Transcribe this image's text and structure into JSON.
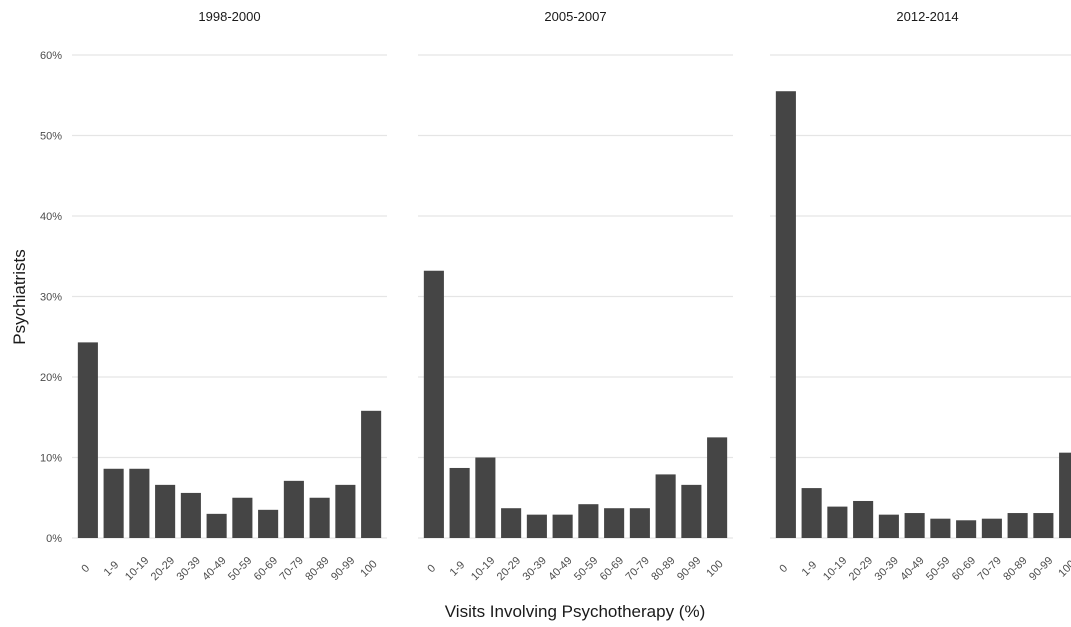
{
  "chart_data": {
    "type": "bar",
    "xlabel": "Visits Involving Psychotherapy (%)",
    "ylabel": "Psychiatrists",
    "ylim": [
      0,
      60
    ],
    "yticks": [
      "0%",
      "10%",
      "20%",
      "30%",
      "40%",
      "50%",
      "60%"
    ],
    "grid": true,
    "categories": [
      "0",
      "1-9",
      "10-19",
      "20-29",
      "30-39",
      "40-49",
      "50-59",
      "60-69",
      "70-79",
      "80-89",
      "90-99",
      "100"
    ],
    "panels": [
      {
        "title": "1998-2000",
        "values": [
          24.3,
          8.6,
          8.6,
          6.6,
          5.6,
          3.0,
          5.0,
          3.5,
          7.1,
          5.0,
          6.6,
          15.8
        ]
      },
      {
        "title": "2005-2007",
        "values": [
          33.2,
          8.7,
          10.0,
          3.7,
          2.9,
          2.9,
          4.2,
          3.7,
          3.7,
          7.9,
          6.6,
          12.5
        ]
      },
      {
        "title": "2012-2014",
        "values": [
          55.5,
          6.2,
          3.9,
          4.6,
          2.9,
          3.1,
          2.4,
          2.2,
          2.4,
          3.1,
          3.1,
          10.6
        ]
      }
    ]
  }
}
